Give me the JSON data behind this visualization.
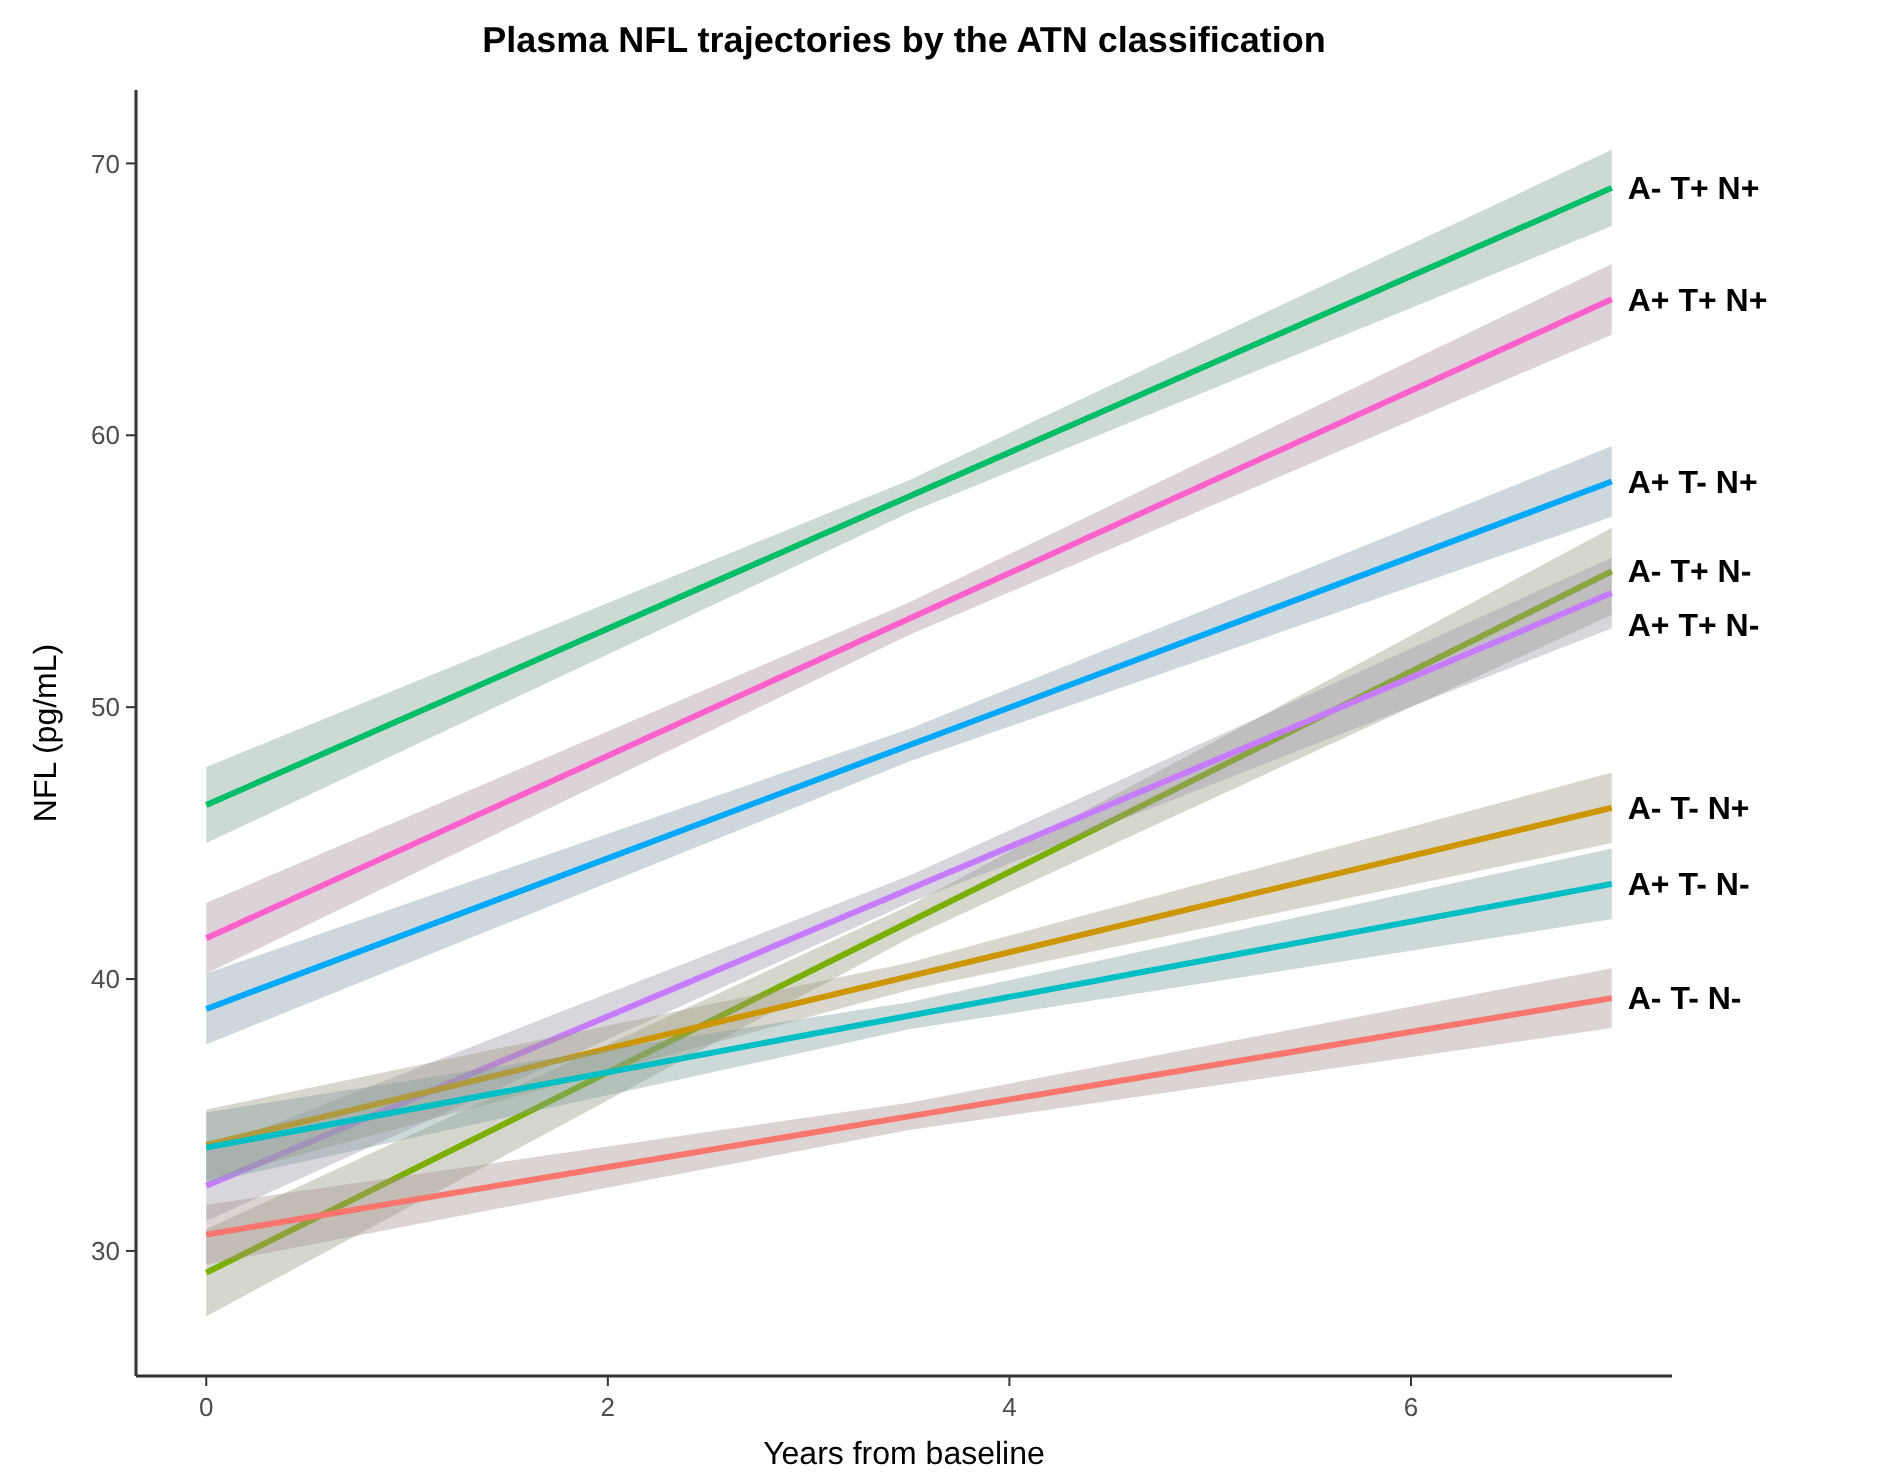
{
  "chart_data": {
    "type": "line",
    "title": "Plasma NFL trajectories by the ATN classification",
    "xlabel": "Years from baseline",
    "ylabel": "NFL (pg/mL)",
    "x": [
      0,
      3.5,
      7
    ],
    "series": [
      {
        "name": "A- T+ N+",
        "color": "#00be67",
        "values": [
          46.4,
          57.75,
          69.1
        ],
        "lower": [
          45.0,
          57.15,
          67.7
        ],
        "upper": [
          47.8,
          58.35,
          70.5
        ]
      },
      {
        "name": "A+ T+ N+",
        "color": "#ff61cc",
        "values": [
          41.5,
          53.25,
          65.0
        ],
        "lower": [
          40.2,
          52.65,
          63.7
        ],
        "upper": [
          42.8,
          53.85,
          66.3
        ]
      },
      {
        "name": "A+ T- N+",
        "color": "#00a9ff",
        "values": [
          38.9,
          48.6,
          58.3
        ],
        "lower": [
          37.6,
          48.0,
          57.0
        ],
        "upper": [
          40.2,
          49.2,
          59.6
        ]
      },
      {
        "name": "A- T+ N-",
        "color": "#7cae00",
        "values": [
          29.2,
          42.1,
          55.0
        ],
        "lower": [
          27.6,
          41.5,
          53.4
        ],
        "upper": [
          30.8,
          42.7,
          56.6
        ]
      },
      {
        "name": "A+ T+ N-",
        "color": "#c77cff",
        "values": [
          32.4,
          43.3,
          54.2
        ],
        "lower": [
          31.1,
          42.8,
          52.9
        ],
        "upper": [
          33.7,
          43.8,
          55.5
        ]
      },
      {
        "name": "A- T- N+",
        "color": "#cd9600",
        "values": [
          33.9,
          40.1,
          46.3
        ],
        "lower": [
          32.6,
          39.6,
          45.0
        ],
        "upper": [
          35.2,
          40.6,
          47.6
        ]
      },
      {
        "name": "A+ T- N-",
        "color": "#00bfc4",
        "values": [
          33.8,
          38.65,
          43.5
        ],
        "lower": [
          32.5,
          38.15,
          42.2
        ],
        "upper": [
          35.1,
          39.15,
          44.8
        ]
      },
      {
        "name": "A- T- N-",
        "color": "#f8766d",
        "values": [
          30.6,
          34.95,
          39.3
        ],
        "lower": [
          29.5,
          34.45,
          38.2
        ],
        "upper": [
          31.7,
          35.45,
          40.4
        ]
      }
    ],
    "xlim": [
      -0.35,
      7.3
    ],
    "xticks": [
      0,
      2,
      4,
      6
    ],
    "ylim": [
      25.4,
      72.7
    ],
    "yticks": [
      30,
      40,
      50,
      60,
      70
    ],
    "grid": false,
    "legend": false,
    "marker": "none",
    "line_style": "solid"
  }
}
